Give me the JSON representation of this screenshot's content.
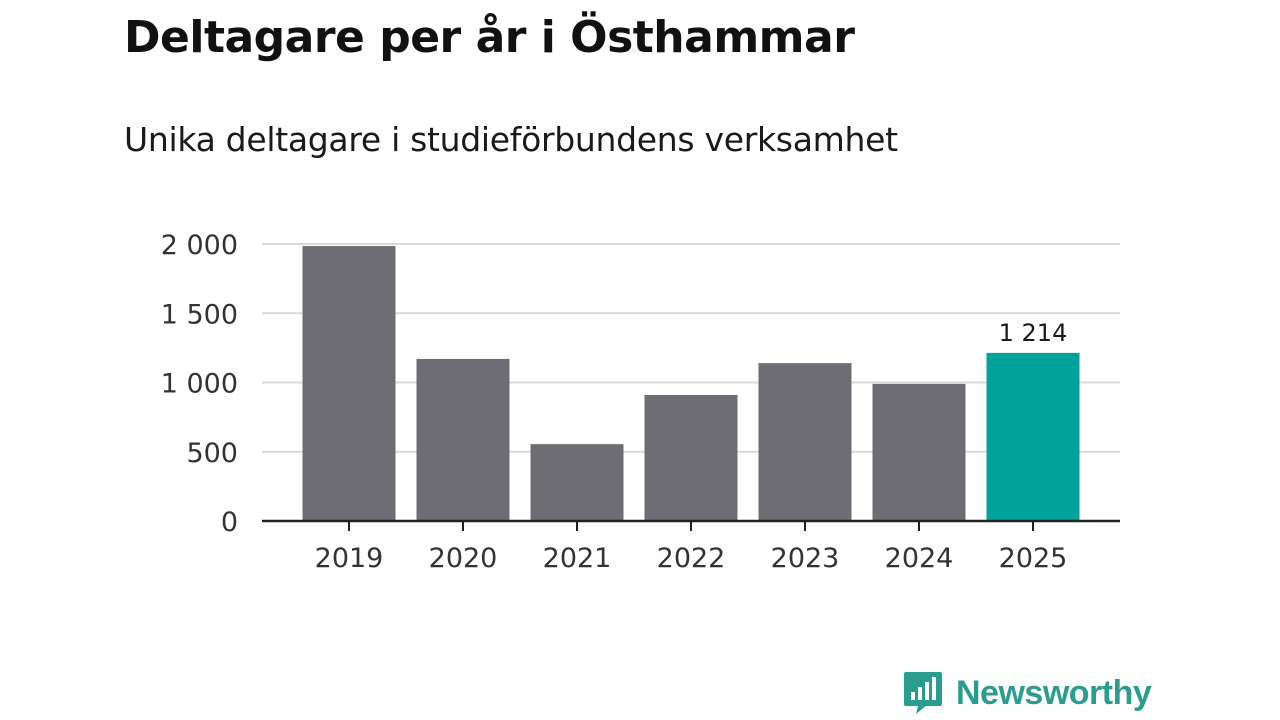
{
  "brand": {
    "name": "Newsworthy",
    "color": "#2a9d8f"
  },
  "colors": {
    "bar_default": "#6e6d73",
    "bar_highlight": "#00a39a",
    "grid": "#d9d9d9",
    "axis": "#222222"
  },
  "chart_data": {
    "type": "bar",
    "title": "Deltagare per år i Östhammar",
    "subtitle": "Unika deltagare i studieförbundens verksamhet",
    "xlabel": "",
    "ylabel": "",
    "categories": [
      "2019",
      "2020",
      "2021",
      "2022",
      "2023",
      "2024",
      "2025"
    ],
    "values": [
      1985,
      1170,
      555,
      910,
      1140,
      990,
      1214
    ],
    "highlight_category": "2025",
    "data_labels": [
      {
        "category": "2025",
        "text": "1 214"
      }
    ],
    "ylim": [
      0,
      2000
    ],
    "yticks": [
      0,
      500,
      1000,
      1500,
      2000
    ],
    "ytick_labels": [
      "0",
      "500",
      "1 000",
      "1 500",
      "2 000"
    ],
    "grid": true,
    "legend": "none"
  }
}
